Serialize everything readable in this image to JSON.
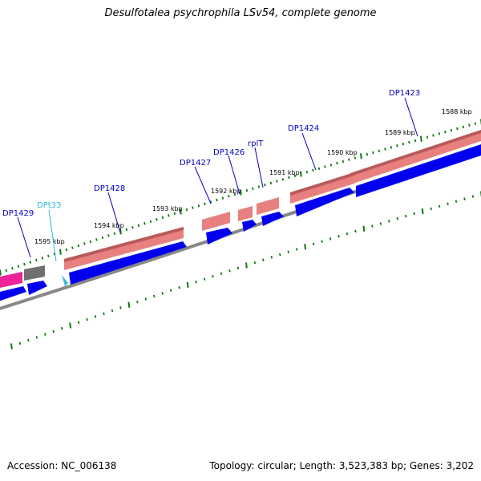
{
  "title": "Desulfotalea psychrophila LSv54, complete genome",
  "footer": {
    "accession": "Accession: NC_006138",
    "summary": "Topology: circular; Length: 3,523,383 bp; Genes: 3,202"
  },
  "colors": {
    "cds_strand": "#0000ee",
    "gene_strand": "#e88080",
    "gene_pink": "#ee2299",
    "gene_gray": "#707070",
    "trna": "#33bbdd",
    "backbone": "#888888",
    "ticks": "#117711",
    "label": "#0000c0"
  },
  "ruler": {
    "labels": [
      "1588 kbp",
      "1589 kbp",
      "1590 kbp",
      "1591 kbp",
      "1592 kbp",
      "1593 kbp",
      "1594 kbp",
      "1595 kbp"
    ]
  },
  "genes": [
    {
      "label": "DP1423"
    },
    {
      "label": "DP1424"
    },
    {
      "label": "rplT"
    },
    {
      "label": "DP1426"
    },
    {
      "label": "DP1427"
    },
    {
      "label": "DP1428"
    },
    {
      "label": "DPt33"
    },
    {
      "label": "DP1429"
    }
  ]
}
